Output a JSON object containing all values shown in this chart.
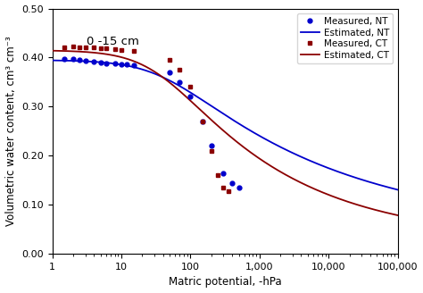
{
  "title_annotation": "0 -15 cm",
  "xlabel": "Matric potential, -hPa",
  "ylabel": "Volumetric water content, cm³ cm⁻³",
  "xlim": [
    1,
    100000
  ],
  "ylim": [
    0.0,
    0.5
  ],
  "yticks": [
    0.0,
    0.1,
    0.2,
    0.3,
    0.4,
    0.5
  ],
  "nt_color": "#0000cc",
  "ct_color": "#8b0000",
  "legend_labels": [
    "Measured, NT",
    "Estimated, NT",
    "Measured, CT",
    "Estimated, CT"
  ],
  "van_genuchten_nt": {
    "theta_r": 0.045,
    "theta_s": 0.395,
    "alpha": 0.025,
    "n": 1.18,
    "m": 0.1525
  },
  "van_genuchten_ct": {
    "theta_r": 0.025,
    "theta_s": 0.415,
    "alpha": 0.028,
    "n": 1.25,
    "m": 0.2
  },
  "measured_nt_x": [
    1.5,
    2.0,
    2.5,
    3.0,
    4.0,
    5.0,
    6.0,
    8.0,
    10.0,
    12.0,
    15.0,
    50.0,
    70.0,
    100.0,
    150.0,
    200.0,
    300.0,
    400.0,
    500.0
  ],
  "measured_nt_y": [
    0.398,
    0.397,
    0.395,
    0.393,
    0.391,
    0.39,
    0.389,
    0.388,
    0.387,
    0.386,
    0.385,
    0.37,
    0.35,
    0.32,
    0.27,
    0.22,
    0.165,
    0.145,
    0.135
  ],
  "measured_ct_x": [
    1.5,
    2.0,
    2.5,
    3.0,
    4.0,
    5.0,
    6.0,
    8.0,
    10.0,
    15.0,
    50.0,
    70.0,
    100.0,
    150.0,
    200.0,
    250.0,
    300.0,
    350.0
  ],
  "measured_ct_y": [
    0.42,
    0.422,
    0.421,
    0.42,
    0.42,
    0.419,
    0.419,
    0.418,
    0.416,
    0.413,
    0.395,
    0.375,
    0.34,
    0.27,
    0.21,
    0.16,
    0.135,
    0.128
  ]
}
